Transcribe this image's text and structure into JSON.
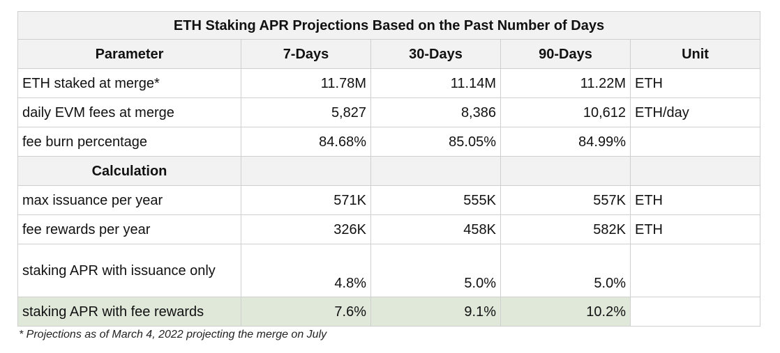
{
  "title": "ETH Staking APR Projections Based on the Past Number of Days",
  "headers": [
    "Parameter",
    "7-Days",
    "30-Days",
    "90-Days",
    "Unit"
  ],
  "rows_top": [
    {
      "label": "ETH staked at merge*",
      "v7": "11.78M",
      "v30": "11.14M",
      "v90": "11.22M",
      "unit": "ETH"
    },
    {
      "label": "daily EVM fees at merge",
      "v7": "5,827",
      "v30": "8,386",
      "v90": "10,612",
      "unit": "ETH/day"
    },
    {
      "label": "fee burn percentage",
      "v7": "84.68%",
      "v30": "85.05%",
      "v90": "84.99%",
      "unit": ""
    }
  ],
  "section_label": "Calculation",
  "rows_calc": [
    {
      "label": "max issuance per year",
      "v7": "571K",
      "v30": "555K",
      "v90": "557K",
      "unit": "ETH"
    },
    {
      "label": "fee rewards per year",
      "v7": "326K",
      "v30": "458K",
      "v90": "582K",
      "unit": "ETH"
    },
    {
      "label": "staking APR with issuance only",
      "v7": "4.8%",
      "v30": "5.0%",
      "v90": "5.0%",
      "unit": ""
    },
    {
      "label": "staking APR with fee rewards",
      "v7": "7.6%",
      "v30": "9.1%",
      "v90": "10.2%",
      "unit": ""
    }
  ],
  "highlight_color": "#dfe8d9",
  "footnote": "* Projections as of March 4, 2022 projecting the merge on July"
}
